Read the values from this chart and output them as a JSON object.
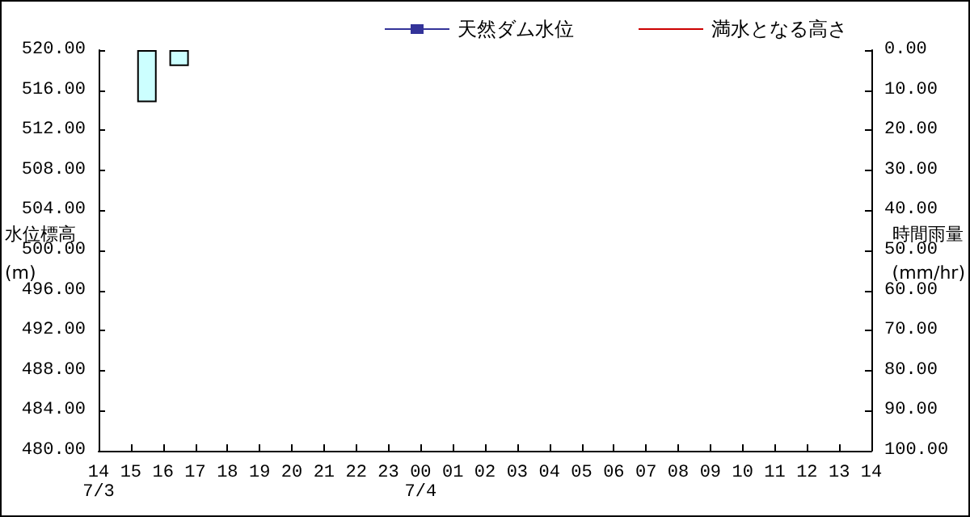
{
  "chart_data": {
    "type": "bar",
    "ylabel": "水位標高\n(m)",
    "y2label": "時間雨量\n(mm/hr)",
    "legend": "top right",
    "grid": false,
    "xlim": [
      "--07-03T14:00",
      "--07-04T14:00"
    ],
    "xticks": [
      {
        "value": "--07-03T14:00",
        "label": "14\n7/3"
      },
      {
        "value": "--07-03T15:00",
        "label": "15"
      },
      {
        "value": "--07-03T16:00",
        "label": "16"
      },
      {
        "value": "--07-03T17:00",
        "label": "17"
      },
      {
        "value": "--07-03T18:00",
        "label": "18"
      },
      {
        "value": "--07-03T19:00",
        "label": "19"
      },
      {
        "value": "--07-03T20:00",
        "label": "20"
      },
      {
        "value": "--07-03T21:00",
        "label": "21"
      },
      {
        "value": "--07-03T22:00",
        "label": "22"
      },
      {
        "value": "--07-03T23:00",
        "label": "23"
      },
      {
        "value": "--07-04T00:00",
        "label": "00\n7/4"
      },
      {
        "value": "--07-04T01:00",
        "label": "01"
      },
      {
        "value": "--07-04T02:00",
        "label": "02"
      },
      {
        "value": "--07-04T03:00",
        "label": "03"
      },
      {
        "value": "--07-04T04:00",
        "label": "04"
      },
      {
        "value": "--07-04T05:00",
        "label": "05"
      },
      {
        "value": "--07-04T06:00",
        "label": "06"
      },
      {
        "value": "--07-04T07:00",
        "label": "07"
      },
      {
        "value": "--07-04T08:00",
        "label": "08"
      },
      {
        "value": "--07-04T09:00",
        "label": "09"
      },
      {
        "value": "--07-04T10:00",
        "label": "10"
      },
      {
        "value": "--07-04T11:00",
        "label": "11"
      },
      {
        "value": "--07-04T12:00",
        "label": "12"
      },
      {
        "value": "--07-04T13:00",
        "label": "13"
      },
      {
        "value": "--07-04T14:00",
        "label": "14"
      }
    ],
    "ylim": [
      480,
      520
    ],
    "yticks": [
      {
        "value": 480,
        "label": "480.00"
      },
      {
        "value": 484,
        "label": "484.00"
      },
      {
        "value": 488,
        "label": "488.00"
      },
      {
        "value": 492,
        "label": "492.00"
      },
      {
        "value": 496,
        "label": "496.00"
      },
      {
        "value": 500,
        "label": "500.00"
      },
      {
        "value": 504,
        "label": "504.00"
      },
      {
        "value": 508,
        "label": "508.00"
      },
      {
        "value": 512,
        "label": "512.00"
      },
      {
        "value": 516,
        "label": "516.00"
      },
      {
        "value": 520,
        "label": "520.00"
      }
    ],
    "y2lim": [
      100,
      0
    ],
    "y2ticks": [
      {
        "value": 0,
        "label": "0.00"
      },
      {
        "value": 10,
        "label": "10.00"
      },
      {
        "value": 20,
        "label": "20.00"
      },
      {
        "value": 30,
        "label": "30.00"
      },
      {
        "value": 40,
        "label": "40.00"
      },
      {
        "value": 50,
        "label": "50.00"
      },
      {
        "value": 60,
        "label": "60.00"
      },
      {
        "value": 70,
        "label": "70.00"
      },
      {
        "value": 80,
        "label": "80.00"
      },
      {
        "value": 90,
        "label": "90.00"
      },
      {
        "value": 100,
        "label": "100.00"
      }
    ],
    "series": [
      {
        "name": "天然ダム水位",
        "type": "line",
        "color": "#333399",
        "marker": "square"
      },
      {
        "name": "満水となる高さ",
        "type": "line",
        "color": "#cc0000",
        "marker": "none"
      },
      {
        "axis": "y2",
        "color": "#ccffff",
        "x": [
          "--07-03T15:30",
          "--07-03T16:30"
        ],
        "values": [
          13,
          4
        ]
      }
    ]
  }
}
